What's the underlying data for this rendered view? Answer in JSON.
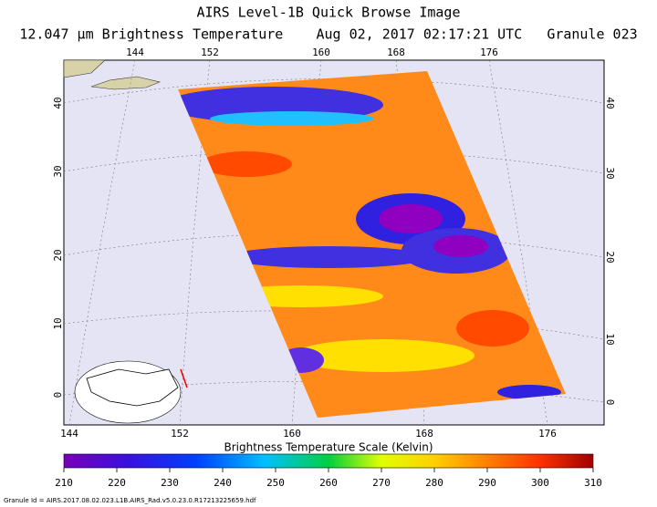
{
  "header": {
    "title": "AIRS Level-1B Quick Browse Image",
    "subtitle": "12.047 μm Brightness Temperature    Aug 02, 2017 02:17:21 UTC   Granule 023"
  },
  "map": {
    "lon_ticks": [
      144,
      152,
      160,
      168,
      176
    ],
    "lat_ticks": [
      40,
      30,
      20,
      10,
      0
    ]
  },
  "colorbar": {
    "title": "Brightness Temperature Scale (Kelvin)",
    "range": [
      210,
      310
    ],
    "ticks": [
      210,
      220,
      230,
      240,
      250,
      260,
      270,
      280,
      290,
      300,
      310
    ]
  },
  "footer": {
    "granule_id": "Granule Id = AIRS.2017.08.02.023.L1B.AIRS_Rad.v5.0.23.0.R17213225659.hdf"
  }
}
